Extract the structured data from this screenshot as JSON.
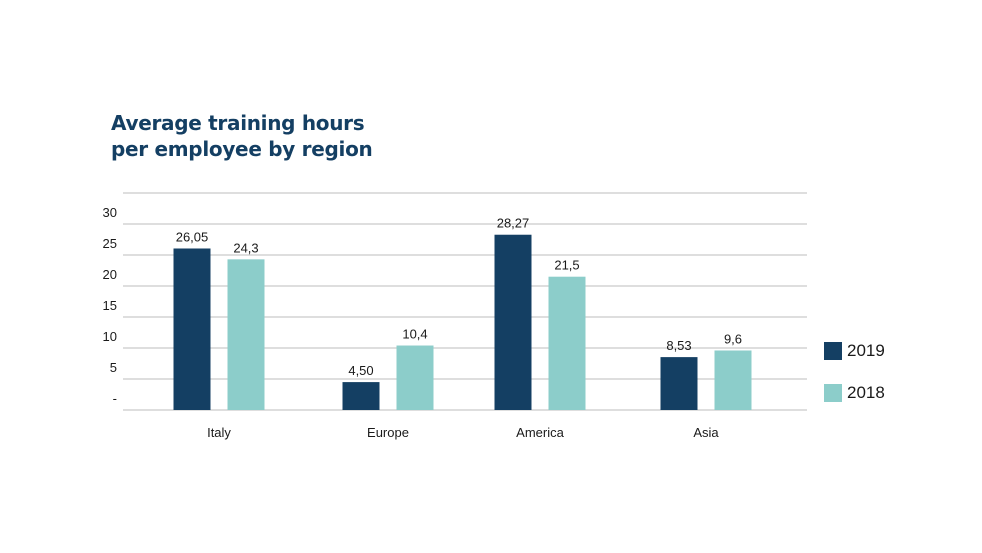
{
  "title_lines": [
    "Average training hours",
    "per employee by region"
  ],
  "colors": {
    "series_2019": "#143f63",
    "series_2018": "#8ccdca",
    "grid": "#bdbdbd",
    "title": "#143f63"
  },
  "chart_data": {
    "type": "bar",
    "title": "Average training hours per employee by region",
    "categories": [
      "Italy",
      "Europe",
      "America",
      "Asia"
    ],
    "series": [
      {
        "name": "2019",
        "values": [
          26.05,
          4.5,
          28.27,
          8.53
        ],
        "labels": [
          "26,05",
          "4,50",
          "28,27",
          "8,53"
        ]
      },
      {
        "name": "2018",
        "values": [
          24.3,
          10.4,
          21.5,
          9.6
        ],
        "labels": [
          "24,3",
          "10,4",
          "21,5",
          "9,6"
        ]
      }
    ],
    "y_ticks": [
      0,
      5,
      10,
      15,
      20,
      25,
      30
    ],
    "y_tick_labels": [
      "-",
      "5",
      "10",
      "15",
      "20",
      "25",
      "30"
    ],
    "ylim": [
      0,
      35
    ],
    "grid": true,
    "legend_position": "right"
  }
}
